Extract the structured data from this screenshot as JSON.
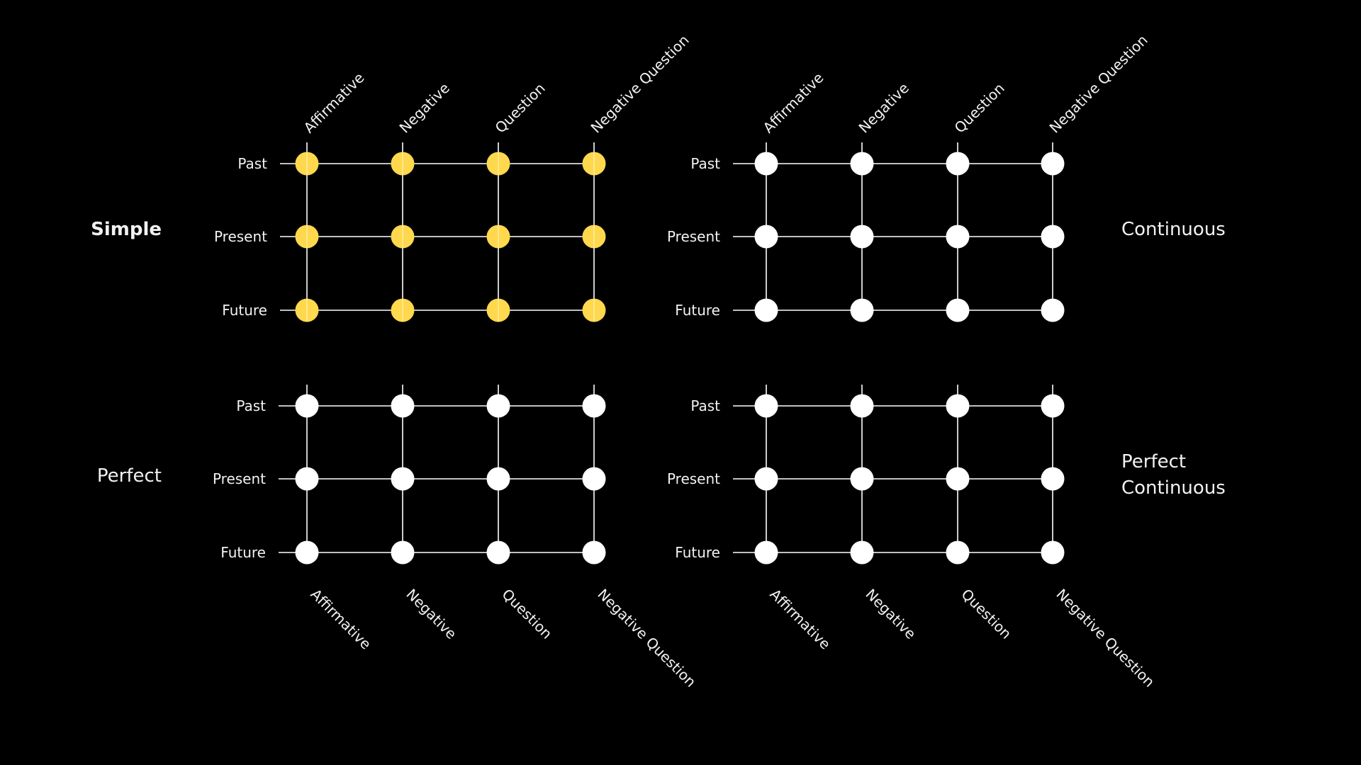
{
  "colors": {
    "background": "#000000",
    "line": "#ffffff",
    "highlight": "#FFD84D",
    "node": "#ffffff"
  },
  "columns": [
    "Affirmative",
    "Negative",
    "Question",
    "Negative Question"
  ],
  "rows": [
    "Past",
    "Present",
    "Future"
  ],
  "grids": [
    {
      "title": [
        "Simple"
      ],
      "title_bold": true,
      "title_side": "left",
      "column_labels": "top",
      "highlighted": true
    },
    {
      "title": [
        "Continuous"
      ],
      "title_bold": false,
      "title_side": "right",
      "column_labels": "top",
      "highlighted": false
    },
    {
      "title": [
        "Perfect"
      ],
      "title_bold": false,
      "title_side": "left",
      "column_labels": "bottom",
      "highlighted": false
    },
    {
      "title": [
        "Perfect",
        "Continuous"
      ],
      "title_bold": false,
      "title_side": "right",
      "column_labels": "bottom",
      "highlighted": false
    }
  ]
}
